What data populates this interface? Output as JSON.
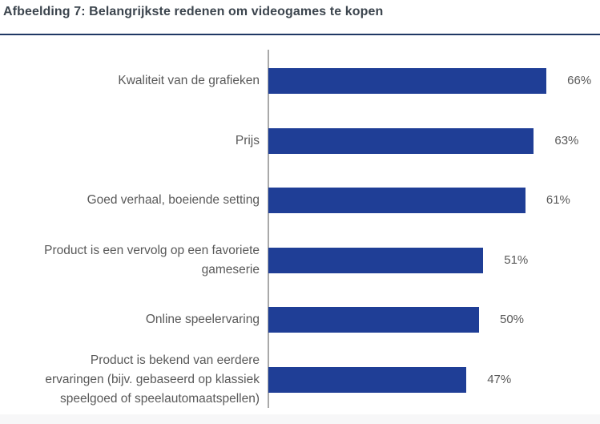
{
  "title": "Afbeelding 7: Belangrijkste redenen om videogames te kopen",
  "colors": {
    "bar": "#1F3E96",
    "title_text": "#3C454E",
    "rule": "#1F3864",
    "axis_line": "#A9A9A9",
    "label_text": "#595959",
    "footer_strip": "#F7F7F8"
  },
  "chart_data": {
    "type": "bar",
    "orientation": "horizontal",
    "title": "Afbeelding 7: Belangrijkste redenen om videogames te kopen",
    "unit": "%",
    "xlabel": "",
    "ylabel": "",
    "xlim": [
      0,
      70
    ],
    "grid": false,
    "legend": false,
    "bar_color": "#1F3E96",
    "categories": [
      "Kwaliteit van de grafieken",
      "Prijs",
      "Goed verhaal, boeiende setting",
      "Product is een vervolg op een favoriete gameserie",
      "Online speelervaring",
      "Product is bekend van eerdere ervaringen (bijv. gebaseerd op klassiek speelgoed of speelautomaatspellen)"
    ],
    "category_display_lines": [
      [
        "Kwaliteit van de grafieken"
      ],
      [
        "Prijs"
      ],
      [
        "Goed verhaal, boeiende setting"
      ],
      [
        "Product is een vervolg op een favoriete",
        "gameserie"
      ],
      [
        "Online speelervaring"
      ],
      [
        "Product is bekend van eerdere",
        "ervaringen (bijv. gebaseerd op klassiek",
        "speelgoed of speelautomaatspellen)"
      ]
    ],
    "values": [
      66,
      63,
      61,
      51,
      50,
      47
    ],
    "value_labels": [
      "66%",
      "63%",
      "61%",
      "51%",
      "50%",
      "47%"
    ]
  }
}
